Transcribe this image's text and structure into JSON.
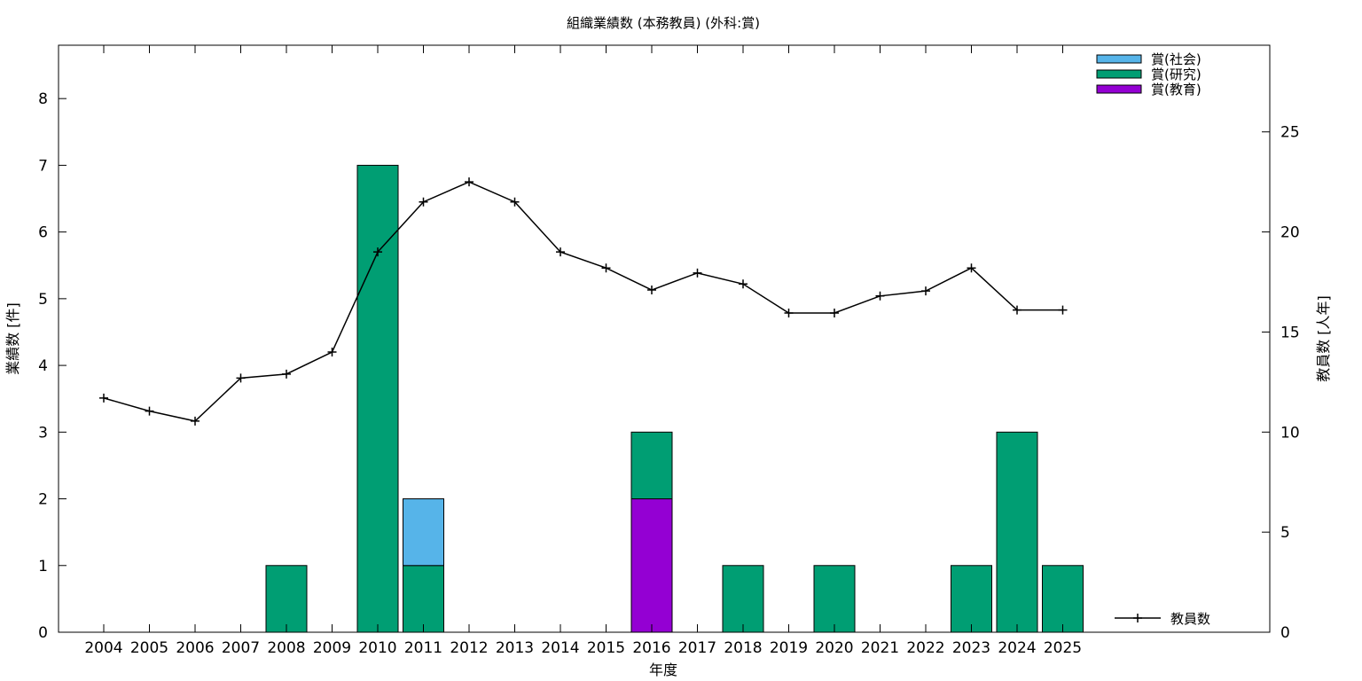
{
  "chart_data": {
    "type": "bar",
    "title": "組織業績数 (本務教員) (外科:賞)",
    "xlabel": "年度",
    "ylabel": "業績数 [件]",
    "y2label": "教員数 [人年]",
    "ylim": [
      0,
      8.8
    ],
    "y2lim": [
      0,
      29.33
    ],
    "yticks": [
      0,
      1,
      2,
      3,
      4,
      5,
      6,
      7,
      8
    ],
    "y2ticks": [
      0,
      5,
      10,
      15,
      20,
      25
    ],
    "grid": false,
    "legend_position": "top-right",
    "categories": [
      "2004",
      "2005",
      "2006",
      "2007",
      "2008",
      "2009",
      "2010",
      "2011",
      "2012",
      "2013",
      "2014",
      "2015",
      "2016",
      "2017",
      "2018",
      "2019",
      "2020",
      "2021",
      "2022",
      "2023",
      "2024",
      "2025"
    ],
    "stacked": true,
    "series": [
      {
        "name": "賞(教育)",
        "color": "#9400d3",
        "values": [
          0,
          0,
          0,
          0,
          0,
          0,
          0,
          0,
          0,
          0,
          0,
          0,
          2,
          0,
          0,
          0,
          0,
          0,
          0,
          0,
          0,
          0
        ]
      },
      {
        "name": "賞(研究)",
        "color": "#009e73",
        "values": [
          0,
          0,
          0,
          0,
          1,
          0,
          7,
          1,
          0,
          0,
          0,
          0,
          1,
          0,
          1,
          0,
          1,
          0,
          0,
          1,
          3,
          1
        ]
      },
      {
        "name": "賞(社会)",
        "color": "#56b4e9",
        "values": [
          0,
          0,
          0,
          0,
          0,
          0,
          0,
          1,
          0,
          0,
          0,
          0,
          0,
          0,
          0,
          0,
          0,
          0,
          0,
          0,
          0,
          0
        ]
      }
    ],
    "legend_order": [
      "賞(社会)",
      "賞(研究)",
      "賞(教育)"
    ],
    "line_series": {
      "name": "教員数",
      "color": "#000000",
      "axis": "right",
      "values": [
        11.7,
        11.05,
        10.55,
        12.7,
        12.9,
        14.0,
        19.0,
        21.5,
        22.5,
        21.5,
        19.0,
        18.2,
        17.1,
        17.95,
        17.4,
        15.95,
        15.95,
        16.8,
        17.05,
        18.2,
        16.1,
        16.1
      ]
    }
  }
}
